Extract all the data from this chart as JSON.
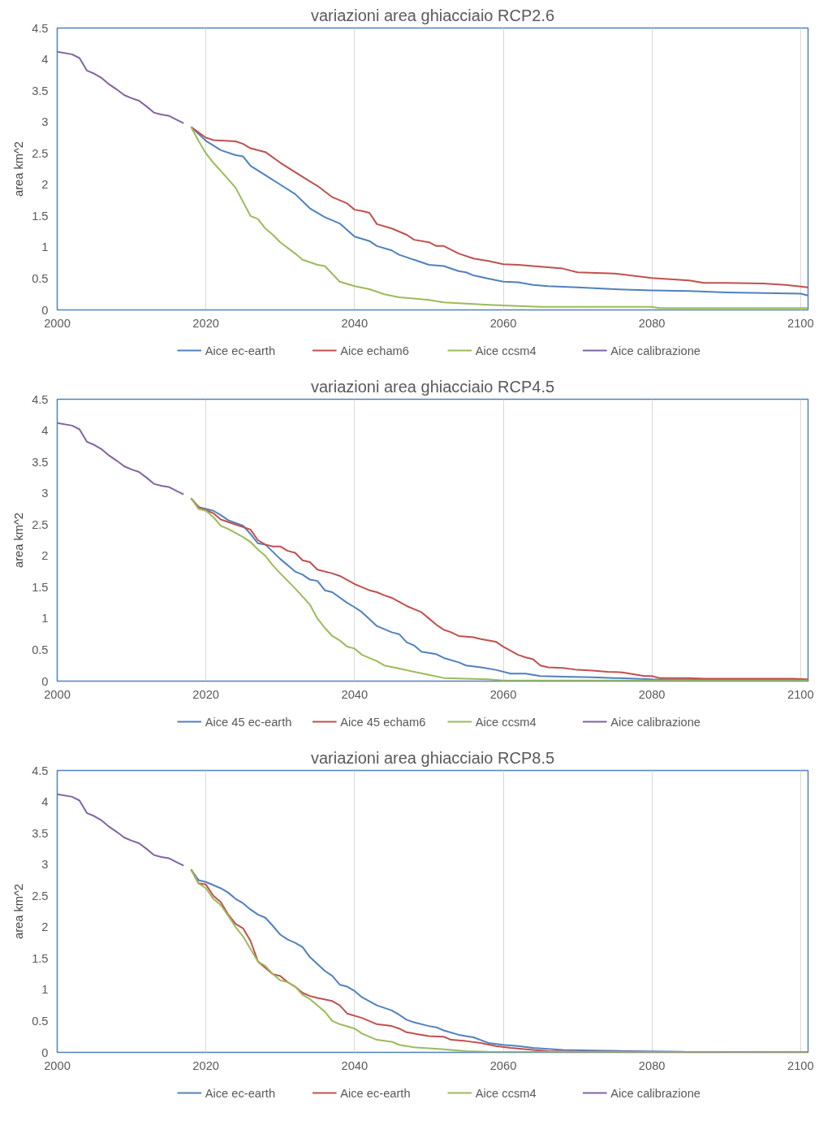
{
  "chart_data": [
    {
      "type": "line",
      "title": "variazioni area ghiacciaio RCP2.6",
      "ylabel": "area km^2",
      "xlim": [
        2000,
        2101
      ],
      "ylim": [
        0,
        4.5
      ],
      "xticks": [
        2000,
        2020,
        2040,
        2060,
        2080,
        2100
      ],
      "yticks": [
        0,
        0.5,
        1,
        1.5,
        2,
        2.5,
        3,
        3.5,
        4,
        4.5
      ],
      "grid": "x",
      "legend": "bottom",
      "line_style": "solid",
      "marker": "none",
      "series": [
        {
          "name": "Aice ec-earth",
          "color": "#4f81bd",
          "x": [
            2018,
            2020,
            2022,
            2024,
            2025,
            2026,
            2028,
            2030,
            2032,
            2034,
            2036,
            2038,
            2040,
            2042,
            2043,
            2045,
            2046,
            2048,
            2050,
            2052,
            2054,
            2055,
            2056,
            2058,
            2060,
            2062,
            2064,
            2066,
            2070,
            2075,
            2080,
            2085,
            2090,
            2095,
            2100,
            2101
          ],
          "values": [
            2.92,
            2.7,
            2.55,
            2.47,
            2.45,
            2.3,
            2.15,
            2.0,
            1.85,
            1.62,
            1.48,
            1.38,
            1.17,
            1.1,
            1.02,
            0.95,
            0.88,
            0.8,
            0.72,
            0.7,
            0.62,
            0.6,
            0.55,
            0.5,
            0.45,
            0.44,
            0.4,
            0.38,
            0.36,
            0.33,
            0.31,
            0.3,
            0.28,
            0.27,
            0.26,
            0.23
          ]
        },
        {
          "name": "Aice echam6",
          "color": "#c0504d",
          "x": [
            2018,
            2020,
            2021,
            2024,
            2025,
            2026,
            2028,
            2030,
            2032,
            2034,
            2035,
            2037,
            2039,
            2040,
            2041,
            2042,
            2043,
            2045,
            2047,
            2048,
            2050,
            2051,
            2052,
            2054,
            2056,
            2058,
            2060,
            2062,
            2065,
            2068,
            2070,
            2075,
            2080,
            2085,
            2087,
            2090,
            2095,
            2098,
            2101
          ],
          "values": [
            2.92,
            2.75,
            2.71,
            2.69,
            2.65,
            2.58,
            2.52,
            2.35,
            2.2,
            2.05,
            1.98,
            1.8,
            1.7,
            1.6,
            1.58,
            1.55,
            1.37,
            1.3,
            1.2,
            1.12,
            1.08,
            1.02,
            1.02,
            0.9,
            0.82,
            0.78,
            0.73,
            0.72,
            0.69,
            0.66,
            0.6,
            0.58,
            0.51,
            0.47,
            0.43,
            0.43,
            0.42,
            0.4,
            0.36
          ]
        },
        {
          "name": "Aice ccsm4",
          "color": "#9bbb59",
          "x": [
            2018,
            2019,
            2020,
            2021,
            2022,
            2024,
            2026,
            2027,
            2028,
            2029,
            2030,
            2032,
            2033,
            2035,
            2036,
            2038,
            2040,
            2042,
            2044,
            2046,
            2048,
            2050,
            2052,
            2055,
            2058,
            2060,
            2065,
            2080,
            2081,
            2101
          ],
          "values": [
            2.92,
            2.7,
            2.5,
            2.35,
            2.22,
            1.95,
            1.5,
            1.45,
            1.3,
            1.2,
            1.08,
            0.9,
            0.8,
            0.72,
            0.7,
            0.45,
            0.38,
            0.33,
            0.25,
            0.2,
            0.18,
            0.16,
            0.12,
            0.1,
            0.08,
            0.07,
            0.05,
            0.05,
            0.03,
            0.03
          ]
        },
        {
          "name": "Aice calibrazione",
          "color": "#8064a2",
          "x": [
            2000,
            2002,
            2003,
            2004,
            2005,
            2006,
            2007,
            2008,
            2009,
            2010,
            2011,
            2012,
            2013,
            2014,
            2015,
            2016,
            2017
          ],
          "values": [
            4.12,
            4.08,
            4.02,
            3.82,
            3.77,
            3.7,
            3.6,
            3.52,
            3.43,
            3.38,
            3.34,
            3.25,
            3.15,
            3.12,
            3.1,
            3.04,
            2.98
          ]
        }
      ]
    },
    {
      "type": "line",
      "title": "variazioni area ghiacciaio RCP4.5",
      "ylabel": "area km^2",
      "xlim": [
        2000,
        2101
      ],
      "ylim": [
        0,
        4.5
      ],
      "xticks": [
        2000,
        2020,
        2040,
        2060,
        2080,
        2100
      ],
      "yticks": [
        0,
        0.5,
        1,
        1.5,
        2,
        2.5,
        3,
        3.5,
        4,
        4.5
      ],
      "grid": "x",
      "legend": "bottom",
      "line_style": "solid",
      "marker": "none",
      "series": [
        {
          "name": "Aice 45 ec-earth",
          "color": "#4f81bd",
          "x": [
            2018,
            2019,
            2021,
            2022,
            2023,
            2025,
            2026,
            2027,
            2028,
            2030,
            2032,
            2033,
            2034,
            2035,
            2036,
            2037,
            2039,
            2040,
            2041,
            2043,
            2045,
            2046,
            2047,
            2048,
            2049,
            2051,
            2052,
            2054,
            2055,
            2057,
            2059,
            2061,
            2063,
            2065,
            2068,
            2072,
            2075,
            2080,
            2101
          ],
          "values": [
            2.92,
            2.78,
            2.72,
            2.65,
            2.57,
            2.48,
            2.35,
            2.2,
            2.18,
            1.95,
            1.75,
            1.7,
            1.62,
            1.6,
            1.45,
            1.42,
            1.25,
            1.18,
            1.1,
            0.88,
            0.78,
            0.75,
            0.62,
            0.57,
            0.47,
            0.43,
            0.37,
            0.3,
            0.25,
            0.22,
            0.18,
            0.12,
            0.12,
            0.08,
            0.07,
            0.06,
            0.05,
            0.03,
            0.02
          ]
        },
        {
          "name": "Aice 45 echam6",
          "color": "#c0504d",
          "x": [
            2018,
            2019,
            2021,
            2022,
            2024,
            2026,
            2027,
            2028,
            2029,
            2030,
            2031,
            2032,
            2033,
            2034,
            2035,
            2037,
            2038,
            2040,
            2041,
            2042,
            2043,
            2044,
            2045,
            2047,
            2048,
            2049,
            2050,
            2051,
            2052,
            2053,
            2054,
            2056,
            2057,
            2059,
            2060,
            2062,
            2063,
            2064,
            2065,
            2066,
            2068,
            2070,
            2072,
            2074,
            2076,
            2077,
            2079,
            2080,
            2081,
            2085,
            2087,
            2099,
            2101
          ],
          "values": [
            2.92,
            2.78,
            2.68,
            2.58,
            2.5,
            2.42,
            2.25,
            2.18,
            2.15,
            2.15,
            2.08,
            2.05,
            1.93,
            1.9,
            1.78,
            1.72,
            1.68,
            1.55,
            1.5,
            1.45,
            1.42,
            1.37,
            1.33,
            1.2,
            1.15,
            1.1,
            1.0,
            0.9,
            0.82,
            0.78,
            0.72,
            0.7,
            0.67,
            0.63,
            0.55,
            0.42,
            0.38,
            0.35,
            0.25,
            0.22,
            0.21,
            0.18,
            0.17,
            0.15,
            0.14,
            0.12,
            0.08,
            0.08,
            0.05,
            0.05,
            0.04,
            0.04,
            0.03
          ]
        },
        {
          "name": "Aice ccsm4",
          "color": "#9bbb59",
          "x": [
            2018,
            2019,
            2020,
            2021,
            2022,
            2023,
            2025,
            2026,
            2027,
            2028,
            2029,
            2030,
            2031,
            2032,
            2033,
            2034,
            2035,
            2036,
            2037,
            2038,
            2039,
            2040,
            2041,
            2043,
            2044,
            2046,
            2048,
            2050,
            2052,
            2055,
            2058,
            2060,
            2101
          ],
          "values": [
            2.92,
            2.75,
            2.72,
            2.62,
            2.48,
            2.43,
            2.3,
            2.22,
            2.1,
            2.0,
            1.85,
            1.72,
            1.6,
            1.48,
            1.35,
            1.22,
            1.0,
            0.85,
            0.72,
            0.65,
            0.55,
            0.52,
            0.42,
            0.32,
            0.25,
            0.2,
            0.15,
            0.1,
            0.05,
            0.04,
            0.03,
            0.01,
            0.01
          ]
        },
        {
          "name": "Aice calibrazione",
          "color": "#8064a2",
          "x": [
            2000,
            2002,
            2003,
            2004,
            2005,
            2006,
            2007,
            2008,
            2009,
            2010,
            2011,
            2012,
            2013,
            2014,
            2015,
            2016,
            2017
          ],
          "values": [
            4.12,
            4.08,
            4.02,
            3.82,
            3.77,
            3.7,
            3.6,
            3.52,
            3.43,
            3.38,
            3.34,
            3.25,
            3.15,
            3.12,
            3.1,
            3.04,
            2.98
          ]
        }
      ]
    },
    {
      "type": "line",
      "title": "variazioni area ghiacciaio RCP8.5",
      "ylabel": "area km^2",
      "xlim": [
        2000,
        2101
      ],
      "ylim": [
        0,
        4.5
      ],
      "xticks": [
        2000,
        2020,
        2040,
        2060,
        2080,
        2100
      ],
      "yticks": [
        0,
        0.5,
        1,
        1.5,
        2,
        2.5,
        3,
        3.5,
        4,
        4.5
      ],
      "grid": "x",
      "legend": "bottom",
      "line_style": "solid",
      "marker": "none",
      "series": [
        {
          "name": "Aice ec-earth",
          "color": "#4f81bd",
          "x": [
            2018,
            2019,
            2020,
            2022,
            2023,
            2024,
            2025,
            2026,
            2027,
            2028,
            2029,
            2030,
            2031,
            2032,
            2033,
            2034,
            2036,
            2037,
            2038,
            2039,
            2040,
            2041,
            2043,
            2045,
            2046,
            2047,
            2048,
            2050,
            2051,
            2052,
            2054,
            2056,
            2058,
            2060,
            2062,
            2064,
            2068,
            2072,
            2077,
            2084,
            2086,
            2101
          ],
          "values": [
            2.92,
            2.75,
            2.72,
            2.62,
            2.55,
            2.45,
            2.38,
            2.28,
            2.2,
            2.15,
            2.02,
            1.88,
            1.8,
            1.75,
            1.68,
            1.52,
            1.3,
            1.22,
            1.08,
            1.05,
            0.98,
            0.88,
            0.75,
            0.67,
            0.6,
            0.52,
            0.48,
            0.42,
            0.4,
            0.35,
            0.28,
            0.24,
            0.15,
            0.12,
            0.1,
            0.07,
            0.04,
            0.03,
            0.02,
            0.01,
            0.0,
            0.0
          ]
        },
        {
          "name": "Aice ec-earth",
          "color": "#c0504d",
          "x": [
            2018,
            2019,
            2020,
            2021,
            2022,
            2023,
            2024,
            2025,
            2026,
            2027,
            2028,
            2029,
            2030,
            2031,
            2032,
            2033,
            2034,
            2035,
            2037,
            2038,
            2039,
            2041,
            2043,
            2045,
            2046,
            2047,
            2049,
            2050,
            2052,
            2053,
            2055,
            2057,
            2059,
            2061,
            2064,
            2066,
            2070,
            2101
          ],
          "values": [
            2.92,
            2.7,
            2.68,
            2.5,
            2.4,
            2.2,
            2.05,
            1.98,
            1.78,
            1.45,
            1.35,
            1.25,
            1.22,
            1.12,
            1.05,
            0.95,
            0.9,
            0.87,
            0.82,
            0.75,
            0.62,
            0.55,
            0.45,
            0.42,
            0.38,
            0.32,
            0.28,
            0.26,
            0.25,
            0.2,
            0.18,
            0.15,
            0.1,
            0.07,
            0.04,
            0.02,
            0.01,
            0.0
          ]
        },
        {
          "name": "Aice ccsm4",
          "color": "#9bbb59",
          "x": [
            2018,
            2019,
            2020,
            2021,
            2022,
            2023,
            2024,
            2025,
            2026,
            2027,
            2028,
            2029,
            2030,
            2031,
            2032,
            2033,
            2034,
            2035,
            2036,
            2037,
            2038,
            2040,
            2041,
            2043,
            2045,
            2046,
            2048,
            2052,
            2055,
            2058,
            2101
          ],
          "values": [
            2.92,
            2.7,
            2.62,
            2.45,
            2.35,
            2.18,
            2.0,
            1.85,
            1.65,
            1.45,
            1.38,
            1.25,
            1.15,
            1.12,
            1.05,
            0.92,
            0.85,
            0.75,
            0.65,
            0.5,
            0.45,
            0.38,
            0.3,
            0.2,
            0.17,
            0.12,
            0.08,
            0.05,
            0.02,
            0.01,
            0.0
          ]
        },
        {
          "name": "Aice calibrazione",
          "color": "#8064a2",
          "x": [
            2000,
            2002,
            2003,
            2004,
            2005,
            2006,
            2007,
            2008,
            2009,
            2010,
            2011,
            2012,
            2013,
            2014,
            2015,
            2016,
            2017
          ],
          "values": [
            4.12,
            4.08,
            4.02,
            3.82,
            3.77,
            3.7,
            3.6,
            3.52,
            3.43,
            3.38,
            3.34,
            3.25,
            3.15,
            3.12,
            3.1,
            3.04,
            2.98
          ]
        }
      ]
    }
  ]
}
